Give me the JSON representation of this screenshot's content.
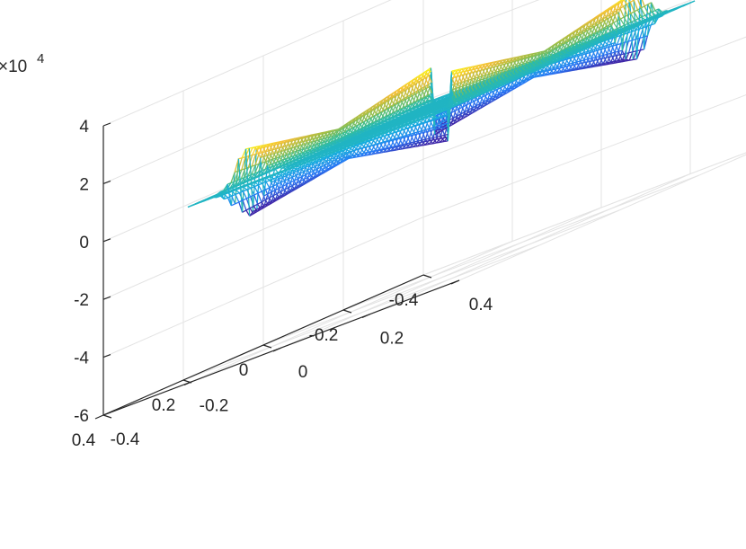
{
  "chart_data": {
    "type": "surface",
    "title": "",
    "xlabel": "",
    "ylabel": "",
    "zlabel": "",
    "view": "default 3-D view (azimuth -37.5, elevation 30)",
    "grid": true,
    "box": true,
    "colormap": "parula",
    "surface_style": "mesh",
    "x_domain": [
      -0.3,
      0.3
    ],
    "y_domain": [
      -0.3,
      0.3
    ],
    "xlim": [
      -0.4,
      0.4
    ],
    "ylim": [
      -0.4,
      0.4
    ],
    "zlim": [
      -6,
      4
    ],
    "z_exponent_label": "×10",
    "z_exponent_power": "4",
    "x_ticks": [
      "-0.4",
      "-0.2",
      "0",
      "0.2",
      "0.4"
    ],
    "y_ticks": [
      "-0.4",
      "-0.2",
      "0",
      "0.2",
      "0.4"
    ],
    "z_ticks": [
      "-6",
      "-4",
      "-2",
      "0",
      "2",
      "4"
    ],
    "z_values_approx": {
      "flat_region": 0,
      "positive_ring_max": 1.2,
      "negative_ring_min": -1.0,
      "units": "×10^4"
    }
  }
}
